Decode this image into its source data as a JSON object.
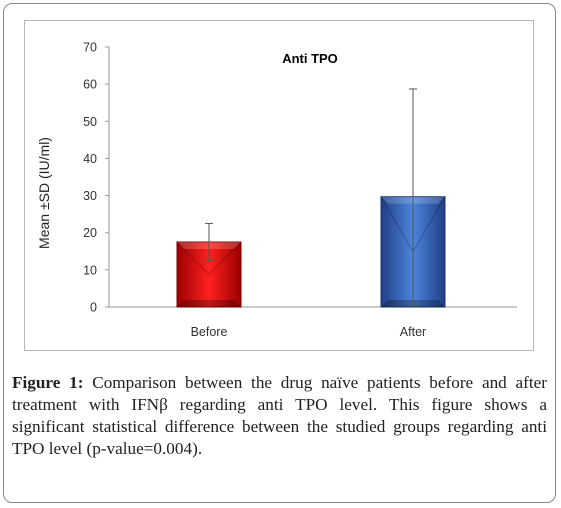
{
  "chart_data": {
    "type": "bar",
    "title": "Anti TPO",
    "ylabel": "Mean ±SD (IU/ml)",
    "xlabel": "",
    "categories": [
      "Before",
      "After"
    ],
    "values": [
      17.5,
      29.7
    ],
    "error_bars": [
      5,
      29
    ],
    "bar_colors": [
      "#e4121a",
      "#3b6fc6"
    ],
    "ylim": [
      0,
      70
    ],
    "yticks": [
      "0",
      "10",
      "20",
      "30",
      "40",
      "50",
      "60",
      "70"
    ],
    "grid": false,
    "legend": "none"
  },
  "caption": {
    "label": "Figure 1:",
    "text": " Comparison between the drug naïve patients before and after treatment with IFNβ regarding anti TPO level. This figure shows a significant statistical difference between the studied groups regarding anti TPO level (p-value=0.004)."
  }
}
